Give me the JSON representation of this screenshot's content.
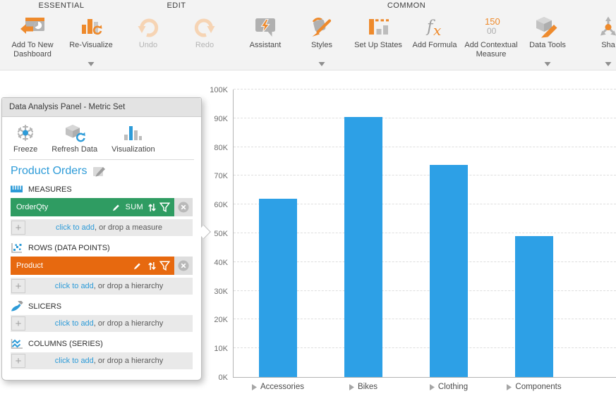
{
  "colors": {
    "accent_orange": "#ee8a2c",
    "disabled_orange": "#f6d4b4",
    "accent_blue": "#2d9bd8",
    "measure_green": "#2f9c62",
    "dimension_orange": "#e7690f",
    "bar_blue": "#2da0e6"
  },
  "ribbon": {
    "groups": [
      {
        "label": "ESSENTIAL",
        "buttons": [
          {
            "name": "add-to-new-dashboard",
            "label": "Add To New Dashboard",
            "icon": "add-to-dashboard"
          },
          {
            "name": "re-visualize",
            "label": "Re-Visualize",
            "icon": "re-visualize",
            "dropdown": true
          }
        ]
      },
      {
        "label": "EDIT",
        "divider_after": true,
        "buttons": [
          {
            "name": "undo",
            "label": "Undo",
            "icon": "undo",
            "disabled": true
          },
          {
            "name": "redo",
            "label": "Redo",
            "icon": "redo",
            "disabled": true
          }
        ]
      },
      {
        "label": "COMMON",
        "divider_after": true,
        "buttons": [
          {
            "name": "assistant",
            "label": "Assistant",
            "icon": "assistant"
          },
          {
            "name": "styles",
            "label": "Styles",
            "icon": "styles",
            "dropdown": true
          },
          {
            "name": "set-up-states",
            "label": "Set Up States",
            "icon": "set-up-states"
          },
          {
            "name": "add-formula",
            "label": "Add Formula",
            "icon": "add-formula"
          },
          {
            "name": "add-contextual-measure",
            "label": "Add Contextual Measure",
            "icon": "add-contextual-measure"
          },
          {
            "name": "data-tools",
            "label": "Data Tools",
            "icon": "data-tools",
            "dropdown": true
          }
        ]
      },
      {
        "label": "",
        "buttons": [
          {
            "name": "share",
            "label": "Sha",
            "icon": "share",
            "dropdown": true
          }
        ]
      }
    ]
  },
  "panel": {
    "title": "Data Analysis Panel - Metric Set",
    "toolbar": [
      {
        "name": "freeze",
        "label": "Freeze",
        "icon": "freeze"
      },
      {
        "name": "refresh-data",
        "label": "Refresh Data",
        "icon": "refresh-data"
      },
      {
        "name": "visualization",
        "label": "Visualization",
        "icon": "visualization"
      }
    ],
    "metric_set_name": "Product Orders",
    "sections": [
      {
        "name": "measures",
        "label": "MEASURES",
        "icon": "measures",
        "items": [
          {
            "name": "OrderQty",
            "aggregator": "SUM",
            "color_key": "measure_green"
          }
        ],
        "placeholder": {
          "link": "click to add",
          "rest": ", or drop a measure"
        }
      },
      {
        "name": "rows",
        "label": "ROWS (DATA POINTS)",
        "icon": "rows",
        "items": [
          {
            "name": "Product",
            "color_key": "dimension_orange"
          }
        ],
        "placeholder": {
          "link": "click to add",
          "rest": ", or drop a hierarchy"
        }
      },
      {
        "name": "slicers",
        "label": "SLICERS",
        "icon": "slicers",
        "items": [],
        "placeholder": {
          "link": "click to add",
          "rest": ", or drop a hierarchy"
        }
      },
      {
        "name": "columns",
        "label": "COLUMNS (SERIES)",
        "icon": "columns",
        "items": [],
        "placeholder": {
          "link": "click to add",
          "rest": ", or drop a hierarchy"
        }
      }
    ]
  },
  "chart_data": {
    "type": "bar",
    "categories": [
      "Accessories",
      "Bikes",
      "Clothing",
      "Components"
    ],
    "values": [
      61900,
      90400,
      73800,
      49000
    ],
    "title": "",
    "xlabel": "",
    "ylabel": "",
    "ylim": [
      0,
      100000
    ],
    "y_ticks": [
      "0K",
      "10K",
      "20K",
      "30K",
      "40K",
      "50K",
      "60K",
      "70K",
      "80K",
      "90K",
      "100K"
    ],
    "grid": "horizontal-dashed",
    "legend": "none",
    "bar_color": "#2da0e6",
    "category_expander": "triangle-right"
  }
}
